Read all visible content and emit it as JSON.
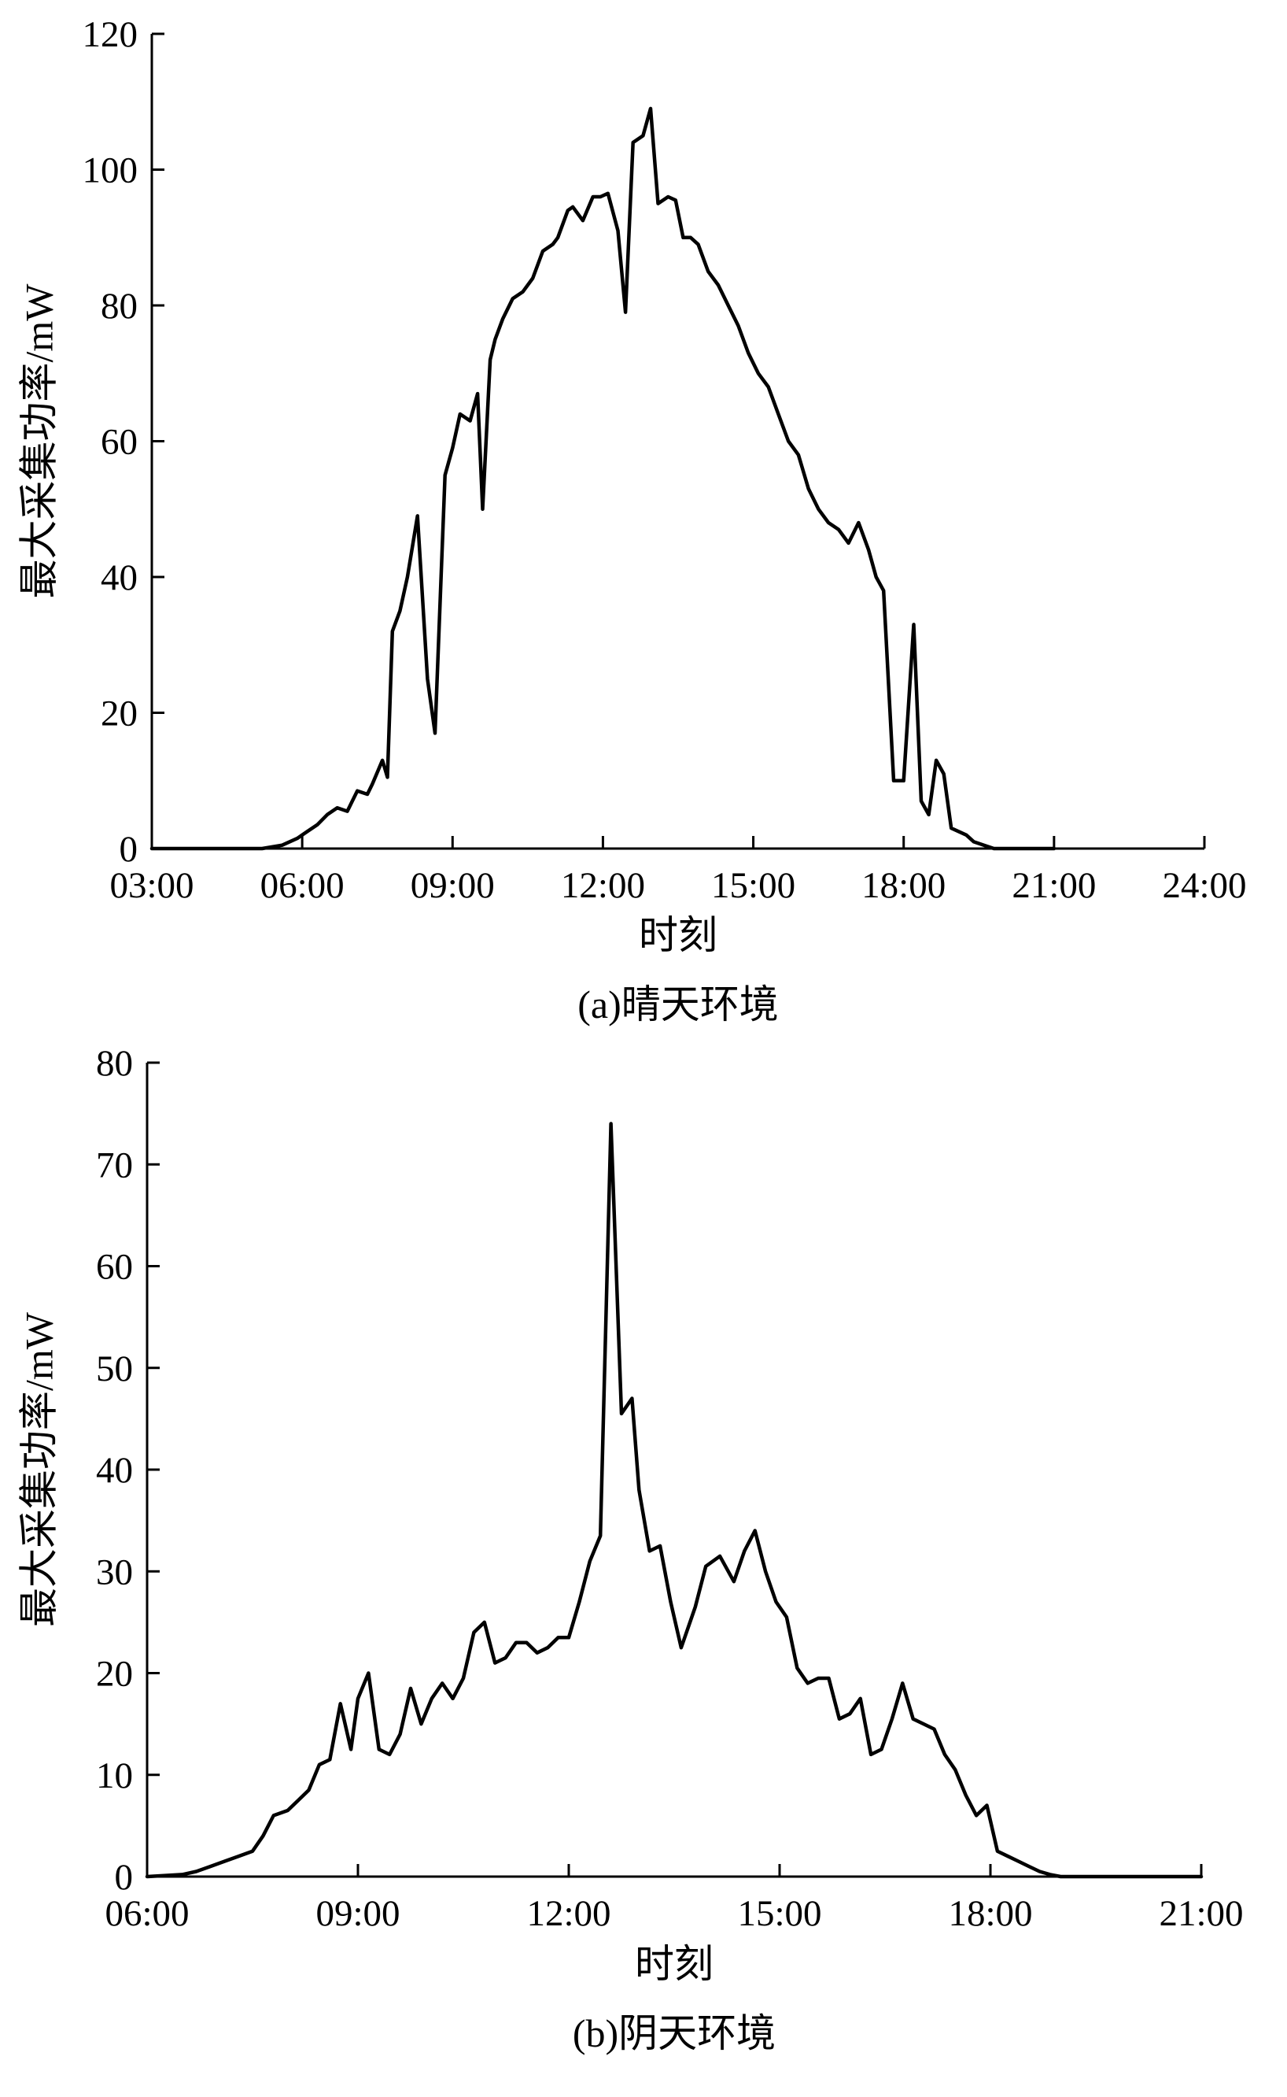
{
  "chart_data": [
    {
      "type": "line",
      "caption": "(a)晴天环境",
      "xlabel": "时刻",
      "ylabel": "最大采集功率/mW",
      "x_tick_labels": [
        "03:00",
        "06:00",
        "09:00",
        "12:00",
        "15:00",
        "18:00",
        "21:00",
        "24:00"
      ],
      "x_tick_values": [
        3,
        6,
        9,
        12,
        15,
        18,
        21,
        24
      ],
      "xlim": [
        3,
        24
      ],
      "ylim": [
        0,
        120
      ],
      "y_ticks": [
        0,
        20,
        40,
        60,
        80,
        100,
        120
      ],
      "grid": false,
      "series": [
        {
          "x": [
            3,
            5.2,
            5.6,
            5.9,
            6.1,
            6.3,
            6.5,
            6.7,
            6.9,
            7.1,
            7.3,
            7.4,
            7.6,
            7.7,
            7.8,
            7.95,
            8.1,
            8.3,
            8.5,
            8.65,
            8.85,
            9.0,
            9.15,
            9.35,
            9.5,
            9.6,
            9.75,
            9.85,
            10.0,
            10.2,
            10.4,
            10.6,
            10.8,
            11.0,
            11.1,
            11.3,
            11.4,
            11.6,
            11.8,
            11.95,
            12.1,
            12.3,
            12.45,
            12.6,
            12.8,
            12.95,
            13.1,
            13.3,
            13.45,
            13.6,
            13.75,
            13.9,
            14.1,
            14.3,
            14.5,
            14.7,
            14.9,
            15.1,
            15.3,
            15.5,
            15.7,
            15.9,
            16.1,
            16.3,
            16.5,
            16.7,
            16.9,
            17.1,
            17.3,
            17.45,
            17.6,
            17.8,
            18.0,
            18.2,
            18.35,
            18.5,
            18.65,
            18.8,
            18.95,
            19.1,
            19.25,
            19.4,
            19.6,
            19.8,
            20.0,
            20.2,
            20.4,
            20.8,
            21.0
          ],
          "y": [
            0,
            0,
            0.5,
            1.5,
            2.5,
            3.5,
            5,
            6,
            5.5,
            8.5,
            8,
            9.5,
            13,
            10.5,
            32,
            35,
            40,
            49,
            25,
            17,
            55,
            59,
            64,
            63,
            67,
            50,
            72,
            75,
            78,
            81,
            82,
            84,
            88,
            89,
            90,
            94,
            94.5,
            92.5,
            96,
            96,
            96.5,
            91,
            79,
            104,
            105,
            109,
            95,
            96,
            95.5,
            90,
            90,
            89,
            85,
            83,
            80,
            77,
            73,
            70,
            68,
            64,
            60,
            58,
            53,
            50,
            48,
            47,
            45,
            48,
            44,
            40,
            38,
            10,
            10,
            33,
            7,
            5,
            13,
            11,
            3,
            2.5,
            2,
            1,
            0.5,
            0,
            0,
            0,
            0,
            0,
            0
          ]
        }
      ]
    },
    {
      "type": "line",
      "caption": "(b)阴天环境",
      "xlabel": "时刻",
      "ylabel": "最大采集功率/mW",
      "x_tick_labels": [
        "06:00",
        "09:00",
        "12:00",
        "15:00",
        "18:00",
        "21:00"
      ],
      "x_tick_values": [
        6,
        9,
        12,
        15,
        18,
        21
      ],
      "xlim": [
        6,
        21
      ],
      "ylim": [
        0,
        80
      ],
      "y_ticks": [
        0,
        10,
        20,
        30,
        40,
        50,
        60,
        70,
        80
      ],
      "grid": false,
      "series": [
        {
          "x": [
            6,
            6.5,
            6.7,
            6.9,
            7.1,
            7.3,
            7.5,
            7.65,
            7.8,
            8.0,
            8.15,
            8.3,
            8.45,
            8.6,
            8.75,
            8.9,
            9.0,
            9.15,
            9.3,
            9.45,
            9.6,
            9.75,
            9.9,
            10.05,
            10.2,
            10.35,
            10.5,
            10.65,
            10.8,
            10.95,
            11.1,
            11.25,
            11.4,
            11.55,
            11.7,
            11.85,
            12.0,
            12.15,
            12.3,
            12.45,
            12.6,
            12.75,
            12.9,
            13.0,
            13.15,
            13.3,
            13.45,
            13.6,
            13.8,
            13.95,
            14.15,
            14.35,
            14.5,
            14.65,
            14.8,
            14.95,
            15.1,
            15.25,
            15.4,
            15.55,
            15.7,
            15.85,
            16.0,
            16.15,
            16.3,
            16.45,
            16.6,
            16.75,
            16.9,
            17.05,
            17.2,
            17.35,
            17.5,
            17.65,
            17.8,
            17.95,
            18.1,
            18.25,
            18.4,
            18.55,
            18.7,
            18.85,
            19.0,
            19.15,
            19.3,
            19.45,
            19.6,
            19.8,
            20.0,
            20.2,
            20.5,
            21.0
          ],
          "y": [
            0,
            0.2,
            0.5,
            1,
            1.5,
            2,
            2.5,
            4,
            6,
            6.5,
            7.5,
            8.5,
            11,
            11.5,
            17,
            12.5,
            17.5,
            20,
            12.5,
            12,
            14,
            18.5,
            15,
            17.5,
            19,
            17.5,
            19.5,
            24,
            25,
            21,
            21.5,
            23,
            23,
            22,
            22.5,
            23.5,
            23.5,
            27,
            31,
            33.5,
            74,
            45.5,
            47,
            38,
            32,
            32.5,
            27,
            22.5,
            26.5,
            30.5,
            31.5,
            29,
            32,
            34,
            30,
            27,
            25.5,
            20.5,
            19,
            19.5,
            19.5,
            15.5,
            16,
            17.5,
            12,
            12.5,
            15.5,
            19,
            15.5,
            15,
            14.5,
            12,
            10.5,
            8,
            6,
            7,
            2.5,
            2,
            1.5,
            1,
            0.5,
            0.2,
            0,
            0,
            0,
            0,
            0,
            0,
            0,
            0,
            0,
            0
          ]
        }
      ]
    }
  ]
}
